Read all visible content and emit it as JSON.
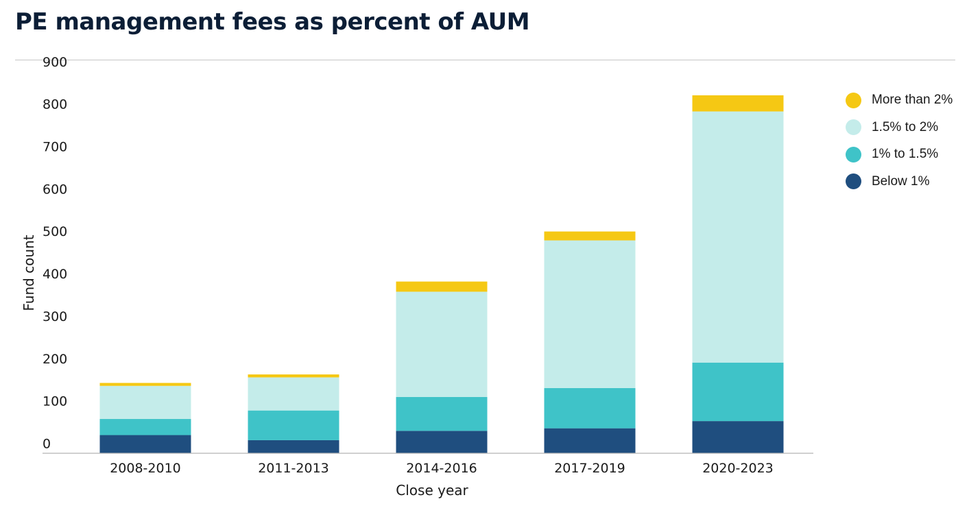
{
  "title": "PE management fees as percent of AUM",
  "chart_data": {
    "type": "bar",
    "stacked": true,
    "title": "PE management fees as percent of AUM",
    "xlabel": "Close year",
    "ylabel": "Fund count",
    "ylim": [
      0,
      900
    ],
    "yticks": [
      0,
      100,
      200,
      300,
      400,
      500,
      600,
      700,
      800,
      900
    ],
    "grid": false,
    "legend_position": "top-right",
    "categories": [
      "2008-2010",
      "2011-2013",
      "2014-2016",
      "2017-2019",
      "2020-2023"
    ],
    "series": [
      {
        "name": "Below 1%",
        "color": "#1f4e7f",
        "values": [
          42,
          30,
          52,
          58,
          75
        ]
      },
      {
        "name": "1% to 1.5%",
        "color": "#3fc3c8",
        "values": [
          38,
          70,
          80,
          95,
          138
        ]
      },
      {
        "name": "1.5% to 2%",
        "color": "#c4ecea",
        "values": [
          78,
          78,
          248,
          348,
          592
        ]
      },
      {
        "name": "More than 2%",
        "color": "#f5c814",
        "values": [
          7,
          7,
          24,
          21,
          38
        ]
      }
    ],
    "legend_order": [
      "More than 2%",
      "1.5% to 2%",
      "1% to 1.5%",
      "Below 1%"
    ]
  }
}
